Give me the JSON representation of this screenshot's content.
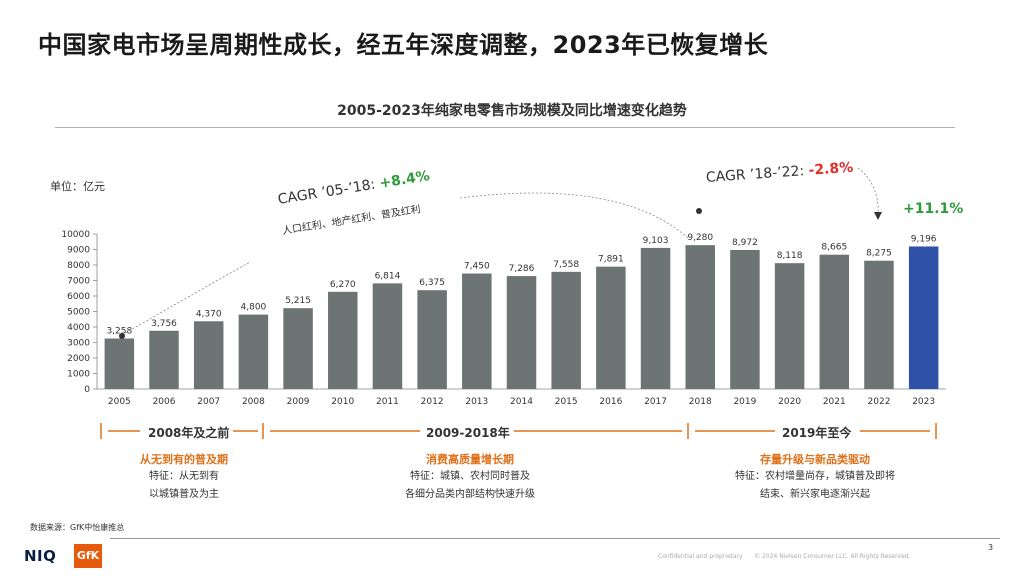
{
  "headline": "中国家电市场呈周期性成长，经五年深度调整，2023年已恢复增长",
  "chart_data": {
    "type": "bar",
    "title": "2005-2023年纯家电零售市场规模及同比增速变化趋势",
    "unit": "单位：亿元",
    "categories": [
      "2005",
      "2006",
      "2007",
      "2008",
      "2009",
      "2010",
      "2011",
      "2012",
      "2013",
      "2014",
      "2015",
      "2016",
      "2017",
      "2018",
      "2019",
      "2020",
      "2021",
      "2022",
      "2023"
    ],
    "values": [
      3258,
      3756,
      4370,
      4800,
      5215,
      6270,
      6814,
      6375,
      7450,
      7286,
      7558,
      7891,
      9103,
      9280,
      8972,
      8118,
      8665,
      8275,
      9196
    ],
    "value_labels": [
      "3,258",
      "3,756",
      "4,370",
      "4,800",
      "5,215",
      "6,270",
      "6,814",
      "6,375",
      "7,450",
      "7,286",
      "7,558",
      "7,891",
      "9,103",
      "9,280",
      "8,972",
      "8,118",
      "8,665",
      "8,275",
      "9,196"
    ],
    "ylim": [
      0,
      10000
    ],
    "yticks": [
      "0",
      "1000",
      "2000",
      "3000",
      "4000",
      "5000",
      "6000",
      "7000",
      "8000",
      "9000",
      "10000"
    ],
    "colors": {
      "default": "#6c7474",
      "highlight": "#2f52a8"
    },
    "highlight_category": "2023",
    "grid": false,
    "annotations": {
      "cagr1": {
        "prefix": "CAGR ’05-’18: ",
        "value": "+8.4%",
        "sub": "人口红利、地产红利、普及红利"
      },
      "cagr2": {
        "prefix": "CAGR ’18-’22: ",
        "value": "-2.8%"
      },
      "cagr3": {
        "value": "+11.1%"
      }
    }
  },
  "periods": [
    {
      "label": "2008年及之前",
      "title": "从无到有的普及期",
      "desc1": "特征：从无到有",
      "desc2": "以城镇普及为主"
    },
    {
      "label": "2009-2018年",
      "title": "消费高质量增长期",
      "desc1": "特征：城镇、农村同时普及",
      "desc2": "各细分品类内部结构快速升级"
    },
    {
      "label": "2019年至今",
      "title": "存量升级与新品类驱动",
      "desc1": "特征：农村增量尚存，城镇普及即将",
      "desc2": "结束、新兴家电逐渐兴起"
    }
  ],
  "footer": {
    "source": "数据来源：GfK中怡康推总",
    "page": "3",
    "confidential": "Confidential and proprietary",
    "copyright": "© 2024 Nielsen Consumer LLC. All Rights Reserved.",
    "logo_niq": "NIQ",
    "logo_gfk": "GfK"
  }
}
